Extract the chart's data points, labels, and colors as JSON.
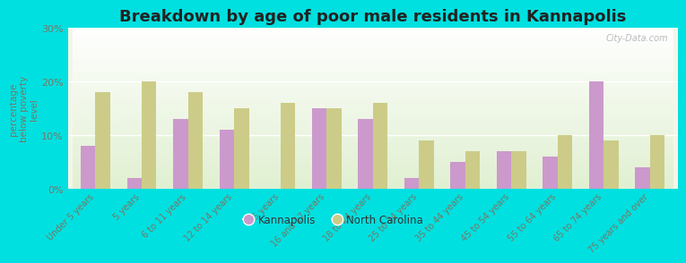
{
  "title": "Breakdown by age of poor male residents in Kannapolis",
  "ylabel": "percentage\nbelow poverty\nlevel",
  "categories": [
    "Under 5 years",
    "5 years",
    "6 to 11 years",
    "12 to 14 years",
    "15 years",
    "16 and 17 years",
    "18 to 24 years",
    "25 to 34 years",
    "35 to 44 years",
    "45 to 54 years",
    "55 to 64 years",
    "65 to 74 years",
    "75 years and over"
  ],
  "kannapolis": [
    8.0,
    2.0,
    13.0,
    11.0,
    0.0,
    15.0,
    13.0,
    2.0,
    5.0,
    7.0,
    6.0,
    20.0,
    4.0
  ],
  "north_carolina": [
    18.0,
    20.0,
    18.0,
    15.0,
    16.0,
    15.0,
    16.0,
    9.0,
    7.0,
    7.0,
    10.0,
    9.0,
    10.0
  ],
  "kannapolis_color": "#cc99cc",
  "nc_color": "#cccc88",
  "outer_bg": "#00e0e0",
  "ylim": [
    0,
    30
  ],
  "yticks": [
    0,
    10,
    20,
    30
  ],
  "ytick_labels": [
    "0%",
    "10%",
    "20%",
    "30%"
  ],
  "title_fontsize": 13,
  "tick_color": "#777766",
  "legend_kannapolis": "Kannapolis",
  "legend_nc": "North Carolina"
}
